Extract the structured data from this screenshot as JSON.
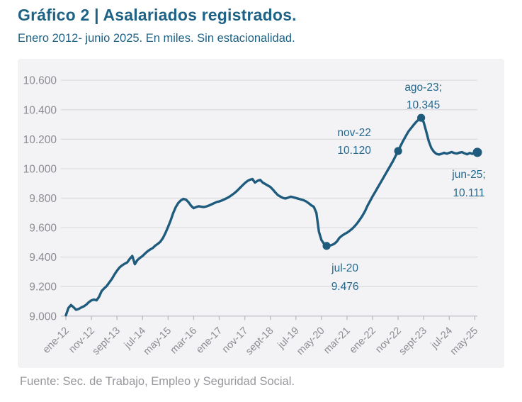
{
  "header": {
    "title": "Gráfico 2 | Asalariados registrados.",
    "subtitle": "Enero 2012- junio 2025. En miles. Sin estacionalidad."
  },
  "footer": {
    "source": "Fuente: Sec. de Trabajo, Empleo y Seguridad Social."
  },
  "colors": {
    "accent_text": "#1e6285",
    "line": "#1e5b7d",
    "marker": "#1e5b7d",
    "annotation_text": "#24688c",
    "grid": "#dbdbdf",
    "axis_line": "#c9c9cf",
    "tick": "#bdbdc4",
    "axis_text": "#8c8c92",
    "footer_text": "#97979d",
    "card_bg": "#f3f3f6"
  },
  "chart_data": {
    "type": "line",
    "title": "Gráfico 2 | Asalariados registrados.",
    "subtitle": "Enero 2012- junio 2025. En miles. Sin estacionalidad.",
    "unit": "miles de personas (sin estacionalidad)",
    "x_start": "ene-12",
    "x_end": "jun-25",
    "x_frequency": "monthly",
    "grid": "horizontal",
    "legend": "none",
    "ylim": [
      9000,
      10600
    ],
    "y_ticks": [
      {
        "label": "10.600",
        "value": 10600
      },
      {
        "label": "10.400",
        "value": 10400
      },
      {
        "label": "10.200",
        "value": 10200
      },
      {
        "label": "10.000",
        "value": 10000
      },
      {
        "label": "9.800",
        "value": 9800
      },
      {
        "label": "9.600",
        "value": 9600
      },
      {
        "label": "9.400",
        "value": 9400
      },
      {
        "label": "9.200",
        "value": 9200
      },
      {
        "label": "9.000",
        "value": 9000
      }
    ],
    "x_tick_labels": [
      "ene-12",
      "nov-12",
      "sept-13",
      "jul-14",
      "may-15",
      "mar-16",
      "ene-17",
      "nov-17",
      "sept-18",
      "jul-19",
      "may-20",
      "mar-21",
      "ene-22",
      "nov-22",
      "sept-23",
      "jul-24",
      "may-25"
    ],
    "x_tick_month_indices": [
      0,
      10,
      20,
      30,
      40,
      50,
      60,
      70,
      80,
      90,
      100,
      110,
      120,
      130,
      140,
      150,
      160
    ],
    "values": [
      9005,
      9055,
      9075,
      9060,
      9043,
      9048,
      9058,
      9066,
      9078,
      9095,
      9107,
      9112,
      9107,
      9131,
      9170,
      9188,
      9204,
      9228,
      9252,
      9282,
      9308,
      9330,
      9344,
      9355,
      9364,
      9388,
      9408,
      9352,
      9380,
      9395,
      9408,
      9425,
      9440,
      9452,
      9462,
      9478,
      9490,
      9505,
      9530,
      9565,
      9605,
      9650,
      9700,
      9740,
      9768,
      9785,
      9795,
      9790,
      9772,
      9748,
      9732,
      9740,
      9745,
      9742,
      9740,
      9744,
      9750,
      9758,
      9766,
      9774,
      9778,
      9784,
      9792,
      9800,
      9810,
      9822,
      9835,
      9850,
      9868,
      9885,
      9902,
      9916,
      9925,
      9930,
      9906,
      9918,
      9924,
      9906,
      9896,
      9886,
      9876,
      9858,
      9838,
      9820,
      9810,
      9801,
      9798,
      9804,
      9810,
      9806,
      9801,
      9796,
      9791,
      9786,
      9778,
      9766,
      9752,
      9742,
      9700,
      9572,
      9515,
      9490,
      9476,
      9478,
      9482,
      9490,
      9505,
      9530,
      9545,
      9556,
      9566,
      9578,
      9592,
      9610,
      9630,
      9654,
      9680,
      9710,
      9748,
      9780,
      9812,
      9842,
      9872,
      9902,
      9932,
      9962,
      9992,
      10022,
      10052,
      10086,
      10120,
      10156,
      10190,
      10222,
      10252,
      10274,
      10296,
      10316,
      10333,
      10345,
      10315,
      10252,
      10186,
      10140,
      10114,
      10100,
      10096,
      10101,
      10108,
      10102,
      10108,
      10113,
      10106,
      10103,
      10109,
      10112,
      10104,
      10098,
      10107,
      10100,
      10112,
      10111
    ],
    "annotations": [
      {
        "label": "jul-20",
        "value_label": "9.476",
        "value": 9476,
        "month_index": 102,
        "placement": "below"
      },
      {
        "label": "nov-22",
        "value_label": "10.120",
        "value": 10120,
        "month_index": 130,
        "placement": "above-left"
      },
      {
        "label": "ago-23;",
        "value_label": "10.345",
        "value": 10345,
        "month_index": 139,
        "placement": "above"
      },
      {
        "label": "jun-25;",
        "value_label": "10.111",
        "value": 10111,
        "month_index": 161,
        "placement": "below-right"
      }
    ]
  }
}
